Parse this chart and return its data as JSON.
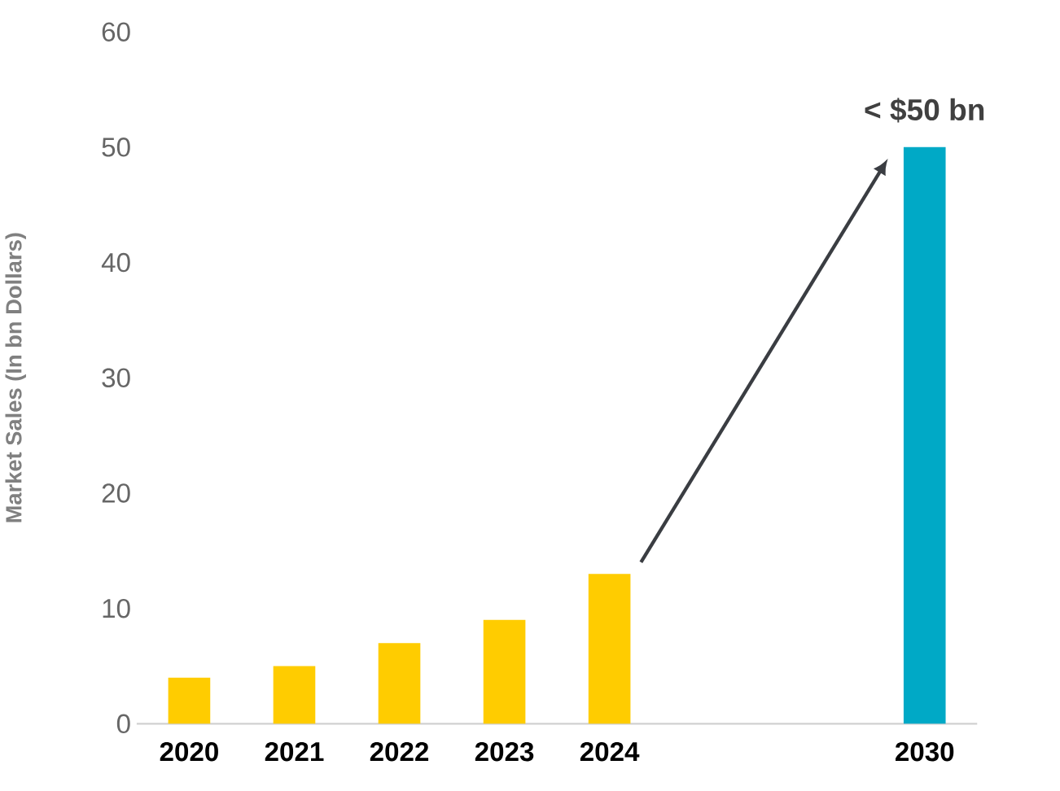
{
  "chart_data": {
    "type": "bar",
    "ylabel": "Market Sales (In bn Dollars)",
    "categories": [
      "2020",
      "2021",
      "2022",
      "2023",
      "2024",
      null,
      null,
      "2030"
    ],
    "values": [
      4,
      5,
      7,
      9,
      13,
      null,
      null,
      50
    ],
    "colors": [
      "#ffcc00",
      "#ffcc00",
      "#ffcc00",
      "#ffcc00",
      "#ffcc00",
      null,
      null,
      "#00a9c6"
    ],
    "ylim": [
      0,
      60
    ],
    "yticks": [
      0,
      10,
      20,
      30,
      40,
      50,
      60
    ],
    "annotations": [
      {
        "text": "< $50 bn",
        "x": "2030",
        "y": 50
      }
    ]
  }
}
